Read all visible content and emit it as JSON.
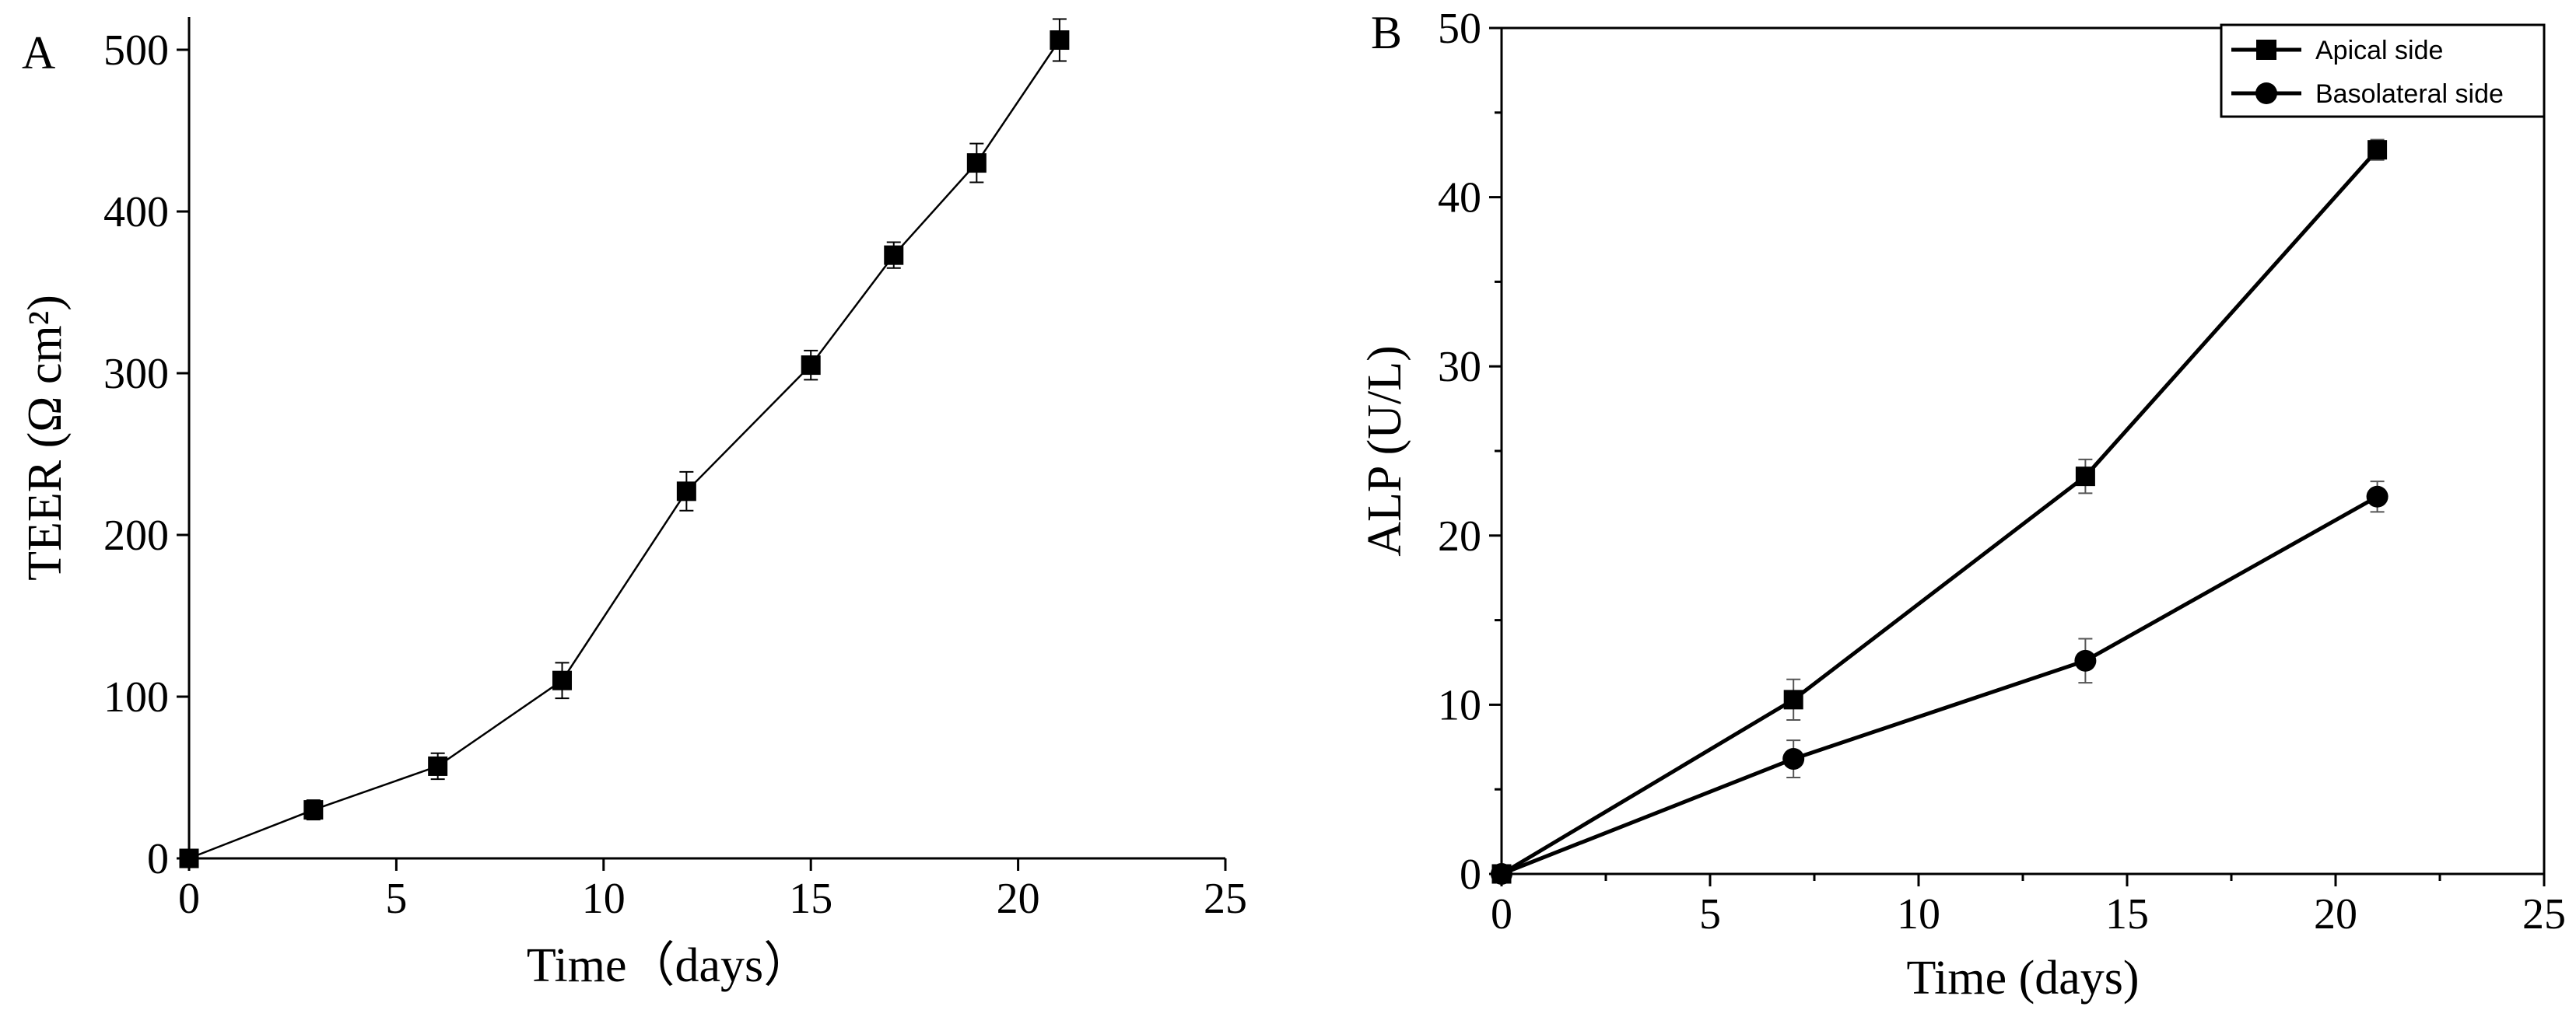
{
  "chart_data": [
    {
      "type": "line",
      "panel_label": "A",
      "xlabel": "Time（days）",
      "ylabel": "TEER (Ω cm²)",
      "xlim": [
        0,
        25
      ],
      "ylim": [
        0,
        500
      ],
      "xticks": [
        "0",
        "5",
        "10",
        "15",
        "20",
        "25"
      ],
      "yticks": [
        "0",
        "100",
        "200",
        "300",
        "400",
        "500"
      ],
      "grid": false,
      "legend": "none",
      "series": [
        {
          "marker": "square",
          "x": [
            0,
            3,
            6,
            9,
            12,
            15,
            17,
            19,
            21
          ],
          "y": [
            0,
            30,
            57,
            110,
            227,
            305,
            373,
            430,
            506
          ],
          "error": [
            0,
            6,
            8,
            11,
            12,
            9,
            8,
            12,
            13
          ]
        }
      ]
    },
    {
      "type": "line",
      "panel_label": "B",
      "xlabel": "Time (days)",
      "ylabel": "ALP (U/L)",
      "xlim": [
        0,
        25
      ],
      "ylim": [
        0,
        50
      ],
      "xticks": [
        "0",
        "5",
        "10",
        "15",
        "20",
        "25"
      ],
      "yticks": [
        "0",
        "10",
        "20",
        "30",
        "40",
        "50"
      ],
      "grid": false,
      "legend": "top-right",
      "series": [
        {
          "name": "Apical side",
          "marker": "square",
          "x": [
            0,
            7,
            14,
            21
          ],
          "y": [
            0,
            10.3,
            23.5,
            42.8
          ],
          "error": [
            0,
            1.2,
            1.0,
            0.6
          ]
        },
        {
          "name": "Basolateral side",
          "marker": "circle",
          "x": [
            0,
            7,
            14,
            21
          ],
          "y": [
            0,
            6.8,
            12.6,
            22.3
          ],
          "error": [
            0,
            1.1,
            1.3,
            0.9
          ]
        }
      ]
    }
  ]
}
